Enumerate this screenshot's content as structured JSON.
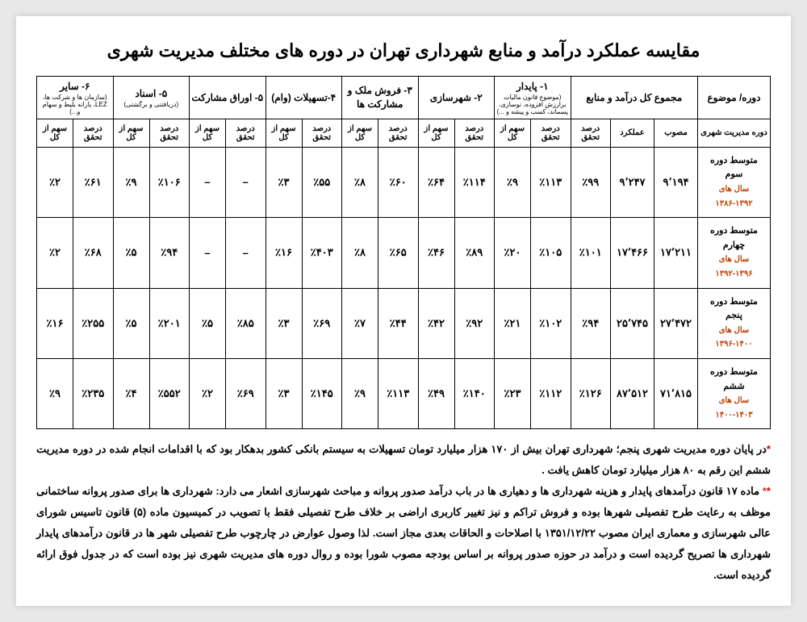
{
  "title": "مقایسه عملکرد درآمد و منابع شهرداری تهران در دوره های مختلف مدیریت شهری",
  "headers": {
    "topic": "دوره/ موضوع",
    "total": {
      "main": "مجموع کل درآمد و منابع"
    },
    "col1": {
      "main": "۱- پایدار",
      "sub": "(موضوع قانون مالیات برارزش افزوده، نوسازی، پسماند، کسب و پیشه و ...)"
    },
    "col2": {
      "main": "۲- شهرسازی"
    },
    "col3": {
      "main": "۳- فروش ملک و مشارکت ها"
    },
    "col4": {
      "main": "۴-تسهیلات (وام)"
    },
    "col5a": {
      "main": "۵- اوراق مشارکت"
    },
    "col5b": {
      "main": "۵- اسناد",
      "sub": "(دریافتنی و برگشتی)"
    },
    "col6": {
      "main": "۶- سایر",
      "sub": "(سازمان ها و شرکت ها، LEZ، یارانه بلیط و سهام و...)"
    }
  },
  "subheaders": {
    "period": "دوره مدیریت شهری",
    "approved": "مصوب",
    "performance": "عملکرد",
    "pct_real": "درصد تحقق",
    "share": "سهم از کل"
  },
  "rows": [
    {
      "period": "متوسط دوره سوم",
      "years": "سال های ۱۳۹۲-۱۳۸۶",
      "approved": "۹٬۱۹۴",
      "performance": "۹٬۲۴۷",
      "total_pct": "٪۹۹",
      "c1p": "٪۱۱۳",
      "c1s": "٪۹",
      "c2p": "٪۱۱۴",
      "c2s": "٪۶۴",
      "c3p": "٪۶۰",
      "c3s": "٪۸",
      "c4p": "٪۵۵",
      "c4s": "٪۳",
      "c5ap": "–",
      "c5as": "–",
      "c5bp": "٪۱۰۶",
      "c5bs": "٪۹",
      "c6p": "٪۶۱",
      "c6s": "٪۲"
    },
    {
      "period": "متوسط دوره چهارم",
      "years": "سال های ۱۳۹۶-۱۳۹۲",
      "approved": "۱۷٬۲۱۱",
      "performance": "۱۷٬۴۶۶",
      "total_pct": "٪۱۰۱",
      "c1p": "٪۱۰۵",
      "c1s": "٪۲۰",
      "c2p": "٪۸۹",
      "c2s": "٪۴۶",
      "c3p": "٪۶۵",
      "c3s": "٪۸",
      "c4p": "٪۴۰۳",
      "c4s": "٪۱۶",
      "c5ap": "–",
      "c5as": "–",
      "c5bp": "٪۹۴",
      "c5bs": "٪۵",
      "c6p": "٪۶۸",
      "c6s": "٪۲"
    },
    {
      "period": "متوسط دوره پنجم",
      "years": "سال های ۱۴۰۰-۱۳۹۶",
      "approved": "۲۷٬۴۷۲",
      "performance": "۲۵٬۷۴۵",
      "total_pct": "٪۹۴",
      "c1p": "٪۱۰۲",
      "c1s": "٪۲۱",
      "c2p": "٪۹۲",
      "c2s": "٪۴۲",
      "c3p": "٪۴۴",
      "c3s": "٪۷",
      "c4p": "٪۶۹",
      "c4s": "٪۳",
      "c5ap": "٪۸۵",
      "c5as": "٪۵",
      "c5bp": "٪۲۰۱",
      "c5bs": "٪۵",
      "c6p": "٪۲۵۵",
      "c6s": "٪۱۶"
    },
    {
      "period": "متوسط دوره ششم",
      "years": "سال های ۱۴۰۳-۱۴۰۰",
      "approved": "۷۱٬۸۱۵",
      "performance": "۸۷٬۵۱۲",
      "total_pct": "٪۱۲۶",
      "c1p": "٪۱۱۲",
      "c1s": "٪۲۳",
      "c2p": "٪۱۴۰",
      "c2s": "٪۴۹",
      "c3p": "٪۱۱۳",
      "c3s": "٪۹",
      "c4p": "٪۱۴۵",
      "c4s": "٪۳",
      "c5ap": "٪۶۹",
      "c5as": "٪۲",
      "c5bp": "٪۵۵۲",
      "c5bs": "٪۴",
      "c6p": "٪۲۳۵",
      "c6s": "٪۹"
    }
  ],
  "notes": {
    "n1": "در پایان دوره مدیریت شهری پنجم؛ شهرداری تهران بیش از ۱۷۰ هزار میلیارد تومان تسهیلات به سیستم بانکی کشور بدهکار بود که با اقدامات انجام شده در دوره مدیریت ششم این رقم به ۸۰ هزار میلیارد تومان کاهش یافت .",
    "n2": "ماده ۱۷ قانون درآمدهای پایدار و هزینه شهرداری ها و دهیاری ها در باب درآمد صدور پروانه و مباحث شهرسازی اشعار می دارد: شهرداری ها برای صدور پروانه ساختمانی موظف به رعایت طرح تفصیلی شهرها بوده و فروش تراکم و نیز تغییر کاربری اراضی بر خلاف طرح تفصیلی فقط با تصویب در کمیسیون ماده (۵) قانون تاسیس شورای عالی شهرسازی و معماری ایران مصوب ۱۳۵۱/۱۲/۲۲ با اصلاحات و الحاقات بعدی مجاز است. لذا وصول عوارض در چارچوب طرح تفصیلی شهر ها در قانون درآمدهای پایدار شهرداری ها تصریح گردیده است و درآمد در حوزه صدور پروانه بر اساس بودجه مصوب شورا بوده و روال دوره های مدیریت شهری نیز بوده است که در جدول فوق ارائه گردیده است."
  }
}
